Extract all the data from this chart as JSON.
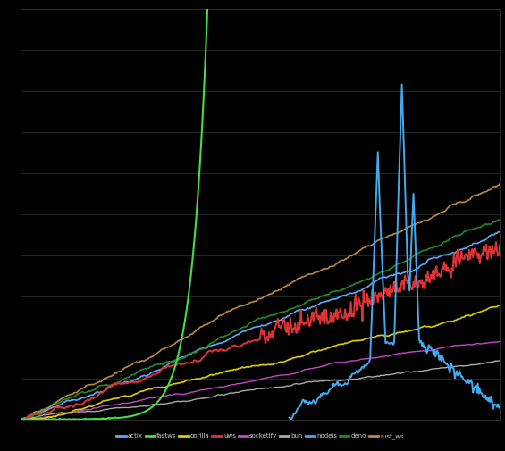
{
  "background_color": "#000000",
  "grid_color": "#2a2a2a",
  "text_color": "#cccccc",
  "n_points": 500,
  "legend_items": [
    {
      "label": "actix",
      "color": "#5aaaff"
    },
    {
      "label": "fastws",
      "color": "#44dd44"
    },
    {
      "label": "gorilla",
      "color": "#ddcc00"
    },
    {
      "label": "uws",
      "color": "#dd2222"
    },
    {
      "label": "socketify",
      "color": "#cc44cc"
    },
    {
      "label": "bun",
      "color": "#888888"
    },
    {
      "label": "nodejs",
      "color": "#44aaee"
    },
    {
      "label": "deno",
      "color": "#44bb44"
    },
    {
      "label": "rust_ws",
      "color": "#bb8844"
    }
  ]
}
